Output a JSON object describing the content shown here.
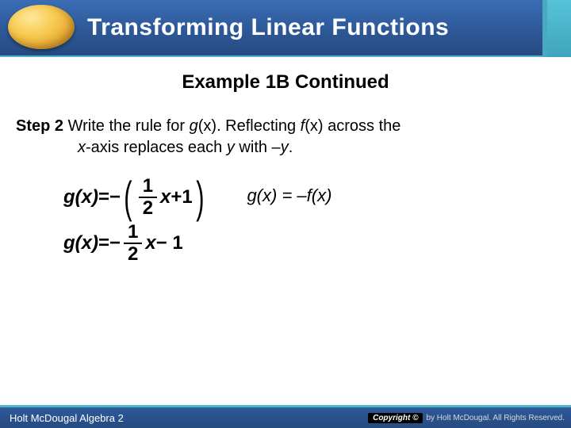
{
  "header": {
    "title": "Transforming Linear Functions",
    "bg_gradient": [
      "#3a6db5",
      "#254a80"
    ],
    "accent_color": "#4fb3c9",
    "orb_colors": [
      "#ffe89a",
      "#e8a830"
    ]
  },
  "content": {
    "example_title": "Example 1B Continued",
    "step_label": "Step 2",
    "step_text_1": " Write the rule for ",
    "step_gx": "g",
    "step_paren_x": "(x)",
    "step_text_2": ". Reflecting ",
    "step_fx": "f",
    "step_text_3": " across the",
    "step_line2a": "x",
    "step_line2b": "-axis replaces each ",
    "step_y": "y",
    "step_line2c": " with –",
    "step_y2": "y",
    "step_line2d": "."
  },
  "eq1": {
    "lhs": "g(x)",
    "eq": " = ",
    "neg": "−",
    "paren_l": "(",
    "num": "1",
    "den": "2",
    "x": "x",
    "plus": " +1",
    "paren_r": ")"
  },
  "eq2": {
    "lhs": "g(x)",
    "eq": " = ",
    "neg": "− ",
    "num": "1",
    "den": "2",
    "x": "x",
    "minus": " − 1"
  },
  "side_note": "g(x) = –f(x)",
  "footer": {
    "left": "Holt McDougal Algebra 2",
    "badge": "Copyright ©",
    "right": "by Holt McDougal. All Rights Reserved."
  }
}
